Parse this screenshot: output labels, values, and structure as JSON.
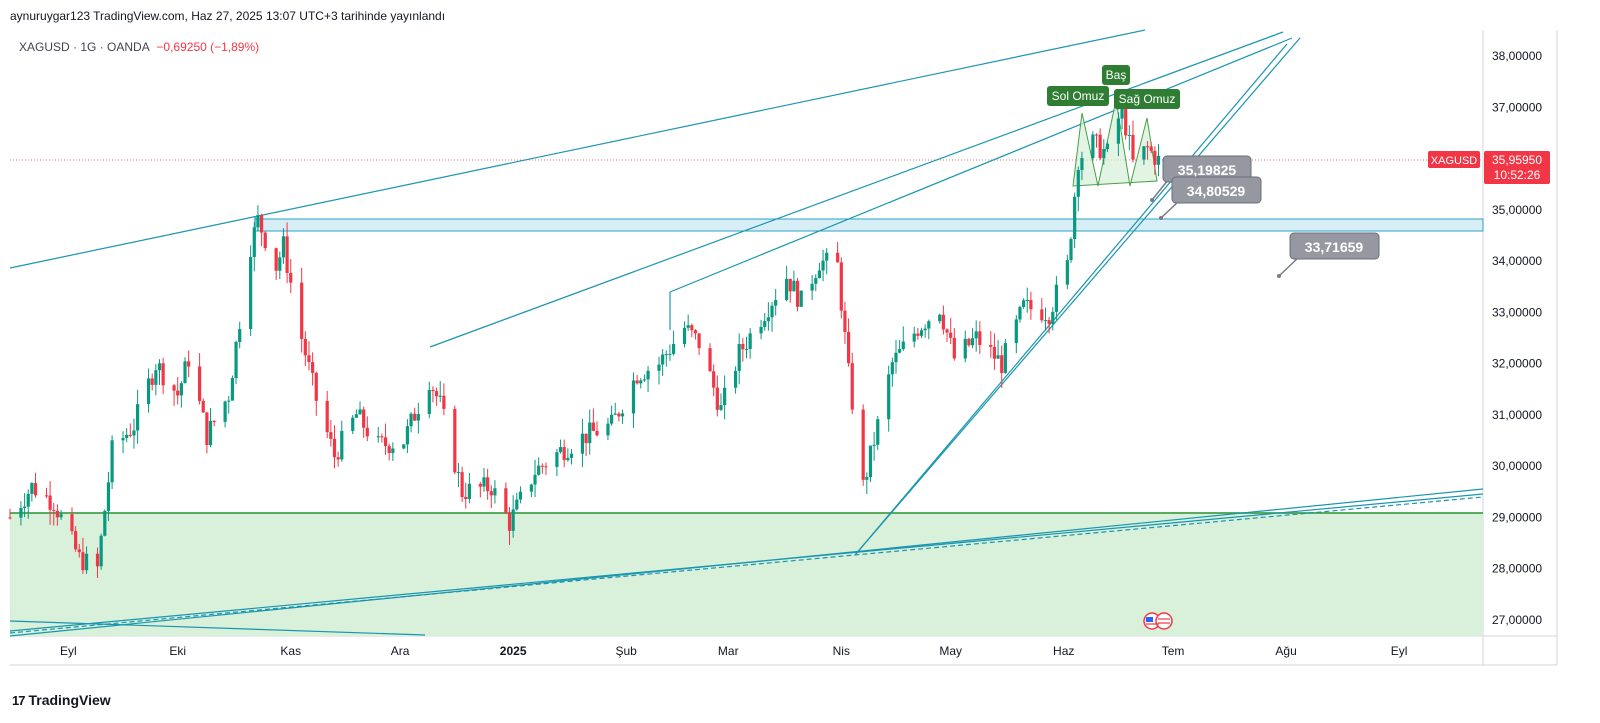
{
  "header": {
    "published": "aynuruygar123 TradingView.com, Haz 27, 2025 13:07 UTC+3 tarihinde yayınlandı"
  },
  "symbol": {
    "name": "XAGUSD",
    "interval": "1G",
    "broker": "OANDA",
    "change": "−0,69250 (−1,89%)"
  },
  "price_tag": {
    "symbol": "XAGUSD",
    "price": "35,95950",
    "countdown": "10:52:26",
    "color": "#f23645"
  },
  "footer": {
    "brand": "TradingView"
  },
  "chart_data": {
    "type": "candlestick",
    "y_ticks": [
      "38,00000",
      "37,00000",
      "36,00000",
      "35,00000",
      "34,00000",
      "33,00000",
      "32,00000",
      "31,00000",
      "30,00000",
      "29,00000",
      "28,00000",
      "27,00000"
    ],
    "y_tick_values": [
      38,
      37,
      36,
      35,
      34,
      33,
      32,
      31,
      30,
      29,
      28,
      27
    ],
    "x_ticks": [
      "Eyl",
      "Eki",
      "Kas",
      "Ara",
      "2025",
      "Şub",
      "Mar",
      "Nis",
      "May",
      "Haz",
      "Tem",
      "Ağu",
      "Eyl"
    ],
    "x_tick_dates": [
      "2024-09-01",
      "2024-10-01",
      "2024-11-01",
      "2024-12-01",
      "2025-01-01",
      "2025-02-01",
      "2025-03-01",
      "2025-04-01",
      "2025-05-01",
      "2025-06-01",
      "2025-07-01",
      "2025-08-01",
      "2025-09-01"
    ],
    "ylim": [
      26.7,
      38.4
    ],
    "xlim": [
      "2024-08-16",
      "2025-09-24"
    ],
    "up_color": "#089981",
    "down_color": "#f23645",
    "close_points": [
      [
        "2024-08-16",
        29.0
      ],
      [
        "2024-08-22",
        29.6
      ],
      [
        "2024-08-28",
        29.3
      ],
      [
        "2024-09-04",
        28.2
      ],
      [
        "2024-09-09",
        28.0
      ],
      [
        "2024-09-13",
        30.3
      ],
      [
        "2024-09-19",
        30.8
      ],
      [
        "2024-09-25",
        32.0
      ],
      [
        "2024-10-01",
        31.4
      ],
      [
        "2024-10-04",
        32.1
      ],
      [
        "2024-10-09",
        30.6
      ],
      [
        "2024-10-15",
        31.4
      ],
      [
        "2024-10-21",
        34.3
      ],
      [
        "2024-10-23",
        34.8
      ],
      [
        "2024-10-28",
        33.9
      ],
      [
        "2024-10-30",
        34.3
      ],
      [
        "2024-11-04",
        32.5
      ],
      [
        "2024-11-08",
        31.3
      ],
      [
        "2024-11-13",
        30.2
      ],
      [
        "2024-11-19",
        31.0
      ],
      [
        "2024-11-25",
        30.4
      ],
      [
        "2024-12-02",
        30.5
      ],
      [
        "2024-12-09",
        31.7
      ],
      [
        "2024-12-12",
        31.2
      ],
      [
        "2024-12-18",
        29.5
      ],
      [
        "2024-12-26",
        29.6
      ],
      [
        "2024-12-31",
        28.9
      ],
      [
        "2025-01-07",
        29.9
      ],
      [
        "2025-01-14",
        30.3
      ],
      [
        "2025-01-21",
        30.6
      ],
      [
        "2025-01-28",
        30.8
      ],
      [
        "2025-02-04",
        31.8
      ],
      [
        "2025-02-10",
        32.0
      ],
      [
        "2025-02-17",
        32.7
      ],
      [
        "2025-02-21",
        32.4
      ],
      [
        "2025-02-27",
        31.1
      ],
      [
        "2025-03-04",
        32.2
      ],
      [
        "2025-03-10",
        32.9
      ],
      [
        "2025-03-17",
        33.7
      ],
      [
        "2025-03-21",
        33.2
      ],
      [
        "2025-03-26",
        34.0
      ],
      [
        "2025-03-31",
        33.9
      ],
      [
        "2025-04-03",
        31.8
      ],
      [
        "2025-04-07",
        29.6
      ],
      [
        "2025-04-10",
        30.5
      ],
      [
        "2025-04-15",
        32.0
      ],
      [
        "2025-04-22",
        32.7
      ],
      [
        "2025-04-28",
        33.1
      ],
      [
        "2025-05-02",
        32.1
      ],
      [
        "2025-05-08",
        32.5
      ],
      [
        "2025-05-15",
        32.0
      ],
      [
        "2025-05-21",
        33.1
      ],
      [
        "2025-05-28",
        33.0
      ],
      [
        "2025-06-02",
        33.9
      ],
      [
        "2025-06-05",
        36.0
      ],
      [
        "2025-06-09",
        36.3
      ],
      [
        "2025-06-13",
        36.1
      ],
      [
        "2025-06-17",
        37.0
      ],
      [
        "2025-06-20",
        35.9
      ],
      [
        "2025-06-24",
        36.2
      ],
      [
        "2025-06-27",
        35.96
      ]
    ],
    "annotations": {
      "pattern_labels": [
        "Sol Omuz",
        "Baş",
        "Sağ Omuz"
      ],
      "price_labels": [
        "35,19825",
        "34,80529",
        "33,71659"
      ],
      "resistance_zone": [
        34.6,
        34.8
      ],
      "support_level": 29.1
    }
  }
}
